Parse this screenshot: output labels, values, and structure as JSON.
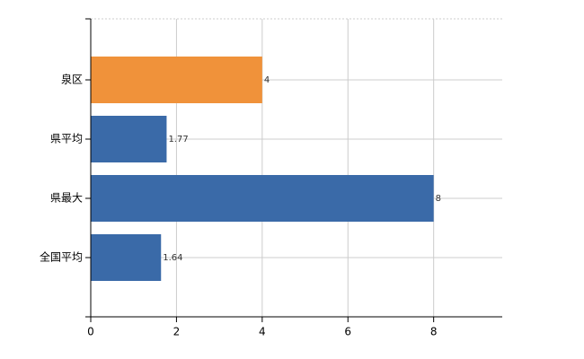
{
  "chart_data": {
    "type": "bar",
    "orientation": "horizontal",
    "categories": [
      "泉区",
      "県平均",
      "県最大",
      "全国平均"
    ],
    "values": [
      4,
      1.77,
      8,
      1.64
    ],
    "colors": [
      "#f0923a",
      "#3a6aa8",
      "#3a6aa8",
      "#3a6aa8"
    ],
    "xlim": [
      0,
      9.6
    ],
    "xticks": [
      0,
      2,
      4,
      6,
      8
    ],
    "grid": true
  }
}
